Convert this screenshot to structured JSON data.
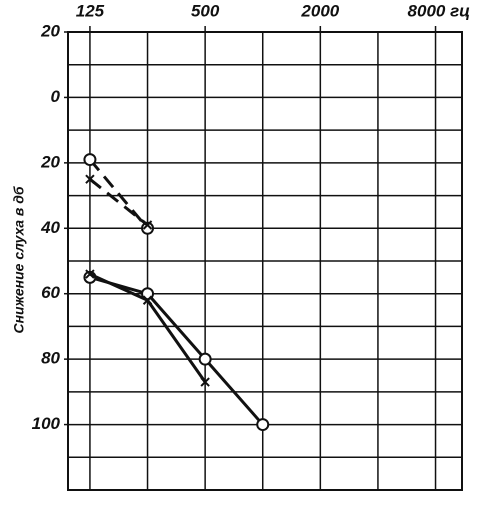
{
  "chart_data": {
    "type": "line",
    "y_label": "Снижение слуха в дб",
    "xlog": true,
    "xlim": [
      96,
      11000
    ],
    "xticks": [
      125,
      500,
      2000,
      {
        "value": 8000,
        "label": "8000 гц"
      }
    ],
    "xgrid": [
      125,
      250,
      500,
      1000,
      2000,
      4000,
      8000
    ],
    "ylim": [
      120,
      -20
    ],
    "yticks": [
      {
        "value": -20,
        "label": "20"
      },
      0,
      20,
      40,
      60,
      80,
      100
    ],
    "ygrid": [
      -20,
      -10,
      0,
      10,
      20,
      30,
      40,
      50,
      60,
      70,
      80,
      90,
      100,
      110
    ],
    "series": [
      {
        "color": "#111",
        "dash": true,
        "marker": "circle",
        "x": [
          125,
          250
        ],
        "values": [
          19,
          40
        ]
      },
      {
        "color": "#111",
        "dash": true,
        "marker": "cross",
        "x": [
          125,
          250
        ],
        "values": [
          25,
          39
        ]
      },
      {
        "color": "#111",
        "dash": false,
        "marker": "circle",
        "x": [
          125,
          250,
          500,
          1000
        ],
        "values": [
          55,
          60,
          80,
          100
        ]
      },
      {
        "color": "#111",
        "dash": false,
        "marker": "cross",
        "x": [
          125,
          250,
          500
        ],
        "values": [
          54,
          62,
          87
        ]
      }
    ]
  }
}
